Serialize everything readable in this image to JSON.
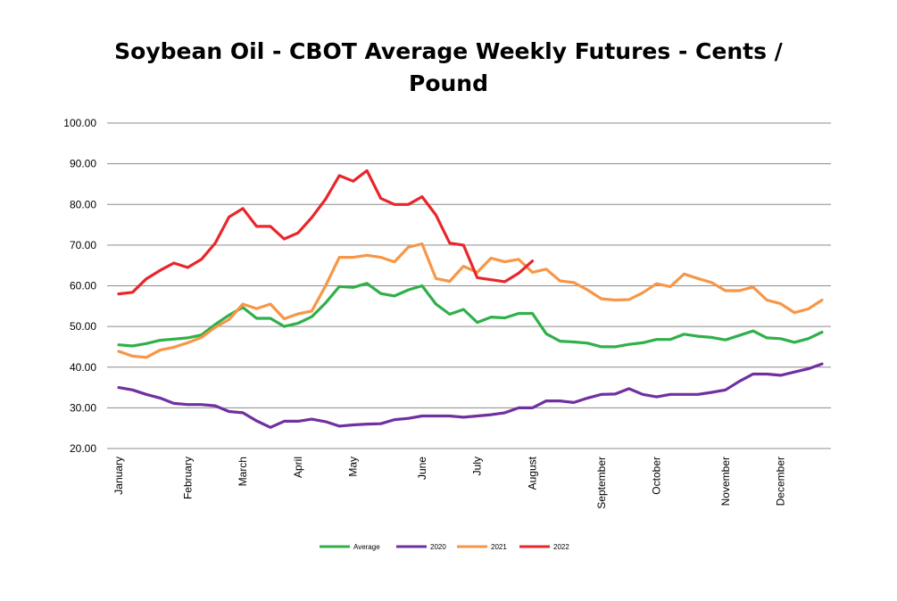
{
  "chart_data": {
    "type": "line",
    "title": "Soybean Oil - CBOT Average Weekly Futures - Cents / Pound",
    "title_lines": [
      "Soybean Oil - CBOT Average Weekly Futures - Cents /",
      "Pound"
    ],
    "xlabel": "",
    "ylabel": "",
    "ylim": [
      20,
      100
    ],
    "y_ticks": [
      "20.00",
      "30.00",
      "40.00",
      "50.00",
      "60.00",
      "70.00",
      "80.00",
      "90.00",
      "100.00"
    ],
    "weeks": 52,
    "month_labels": [
      {
        "label": "January",
        "week": 1
      },
      {
        "label": "February",
        "week": 6
      },
      {
        "label": "March",
        "week": 10
      },
      {
        "label": "April",
        "week": 14
      },
      {
        "label": "May",
        "week": 18
      },
      {
        "label": "June",
        "week": 23
      },
      {
        "label": "July",
        "week": 27
      },
      {
        "label": "August",
        "week": 31
      },
      {
        "label": "September",
        "week": 36
      },
      {
        "label": "October",
        "week": 40
      },
      {
        "label": "November",
        "week": 45
      },
      {
        "label": "December",
        "week": 49
      }
    ],
    "grid": true,
    "legend_position": "bottom",
    "series": [
      {
        "name": "Average",
        "color": "#2fb04a",
        "values": [
          45.5,
          45.2,
          45.8,
          46.6,
          46.9,
          47.2,
          47.9,
          50.5,
          52.8,
          54.7,
          52.0,
          52.0,
          50.0,
          50.8,
          52.4,
          55.8,
          59.8,
          59.6,
          60.6,
          58.1,
          57.5,
          59.0,
          60.0,
          55.5,
          53.0,
          54.2,
          51.0,
          52.3,
          52.1,
          53.2,
          53.2,
          48.2,
          46.4,
          46.2,
          45.9,
          45.0,
          45.0,
          45.6,
          46.0,
          46.8,
          46.8,
          48.1,
          47.6,
          47.3,
          46.7,
          47.8,
          48.9,
          47.2,
          47.0,
          46.1,
          47.0,
          48.6
        ]
      },
      {
        "name": "2020",
        "color": "#7030a0",
        "values": [
          35.0,
          34.4,
          33.3,
          32.4,
          31.1,
          30.8,
          30.8,
          30.5,
          29.1,
          28.8,
          26.8,
          25.2,
          26.7,
          26.7,
          27.2,
          26.6,
          25.5,
          25.8,
          26.0,
          26.1,
          27.1,
          27.4,
          28.0,
          28.0,
          28.0,
          27.7,
          28.0,
          28.3,
          28.8,
          30.0,
          30.0,
          31.7,
          31.7,
          31.3,
          32.4,
          33.3,
          33.4,
          34.7,
          33.3,
          32.7,
          33.3,
          33.3,
          33.3,
          33.8,
          34.4,
          36.5,
          38.3,
          38.3,
          38.0,
          38.8,
          39.6,
          40.8
        ]
      },
      {
        "name": "2021",
        "color": "#f79646",
        "values": [
          43.9,
          42.7,
          42.4,
          44.2,
          44.9,
          46.0,
          47.3,
          49.8,
          51.7,
          55.5,
          54.4,
          55.5,
          51.9,
          53.1,
          53.8,
          60.0,
          67.0,
          67.0,
          67.5,
          67.0,
          65.9,
          69.5,
          70.3,
          61.8,
          61.1,
          64.8,
          63.3,
          66.8,
          65.9,
          66.5,
          63.3,
          64.1,
          61.2,
          60.8,
          59.0,
          56.8,
          56.5,
          56.6,
          58.3,
          60.5,
          59.8,
          62.9,
          61.8,
          60.8,
          58.8,
          58.8,
          59.7,
          56.5,
          55.6,
          53.4,
          54.3,
          56.5
        ]
      },
      {
        "name": "2022",
        "color": "#e8262b",
        "values": [
          58.0,
          58.4,
          61.7,
          63.8,
          65.6,
          64.5,
          66.5,
          70.5,
          76.9,
          79.0,
          74.6,
          74.6,
          71.5,
          73.0,
          76.8,
          81.3,
          87.1,
          85.7,
          88.3,
          81.5,
          80.0,
          80.0,
          81.9,
          77.4,
          70.5,
          70.0,
          62.0,
          61.5,
          61.0,
          63.1,
          66.1
        ]
      }
    ]
  }
}
